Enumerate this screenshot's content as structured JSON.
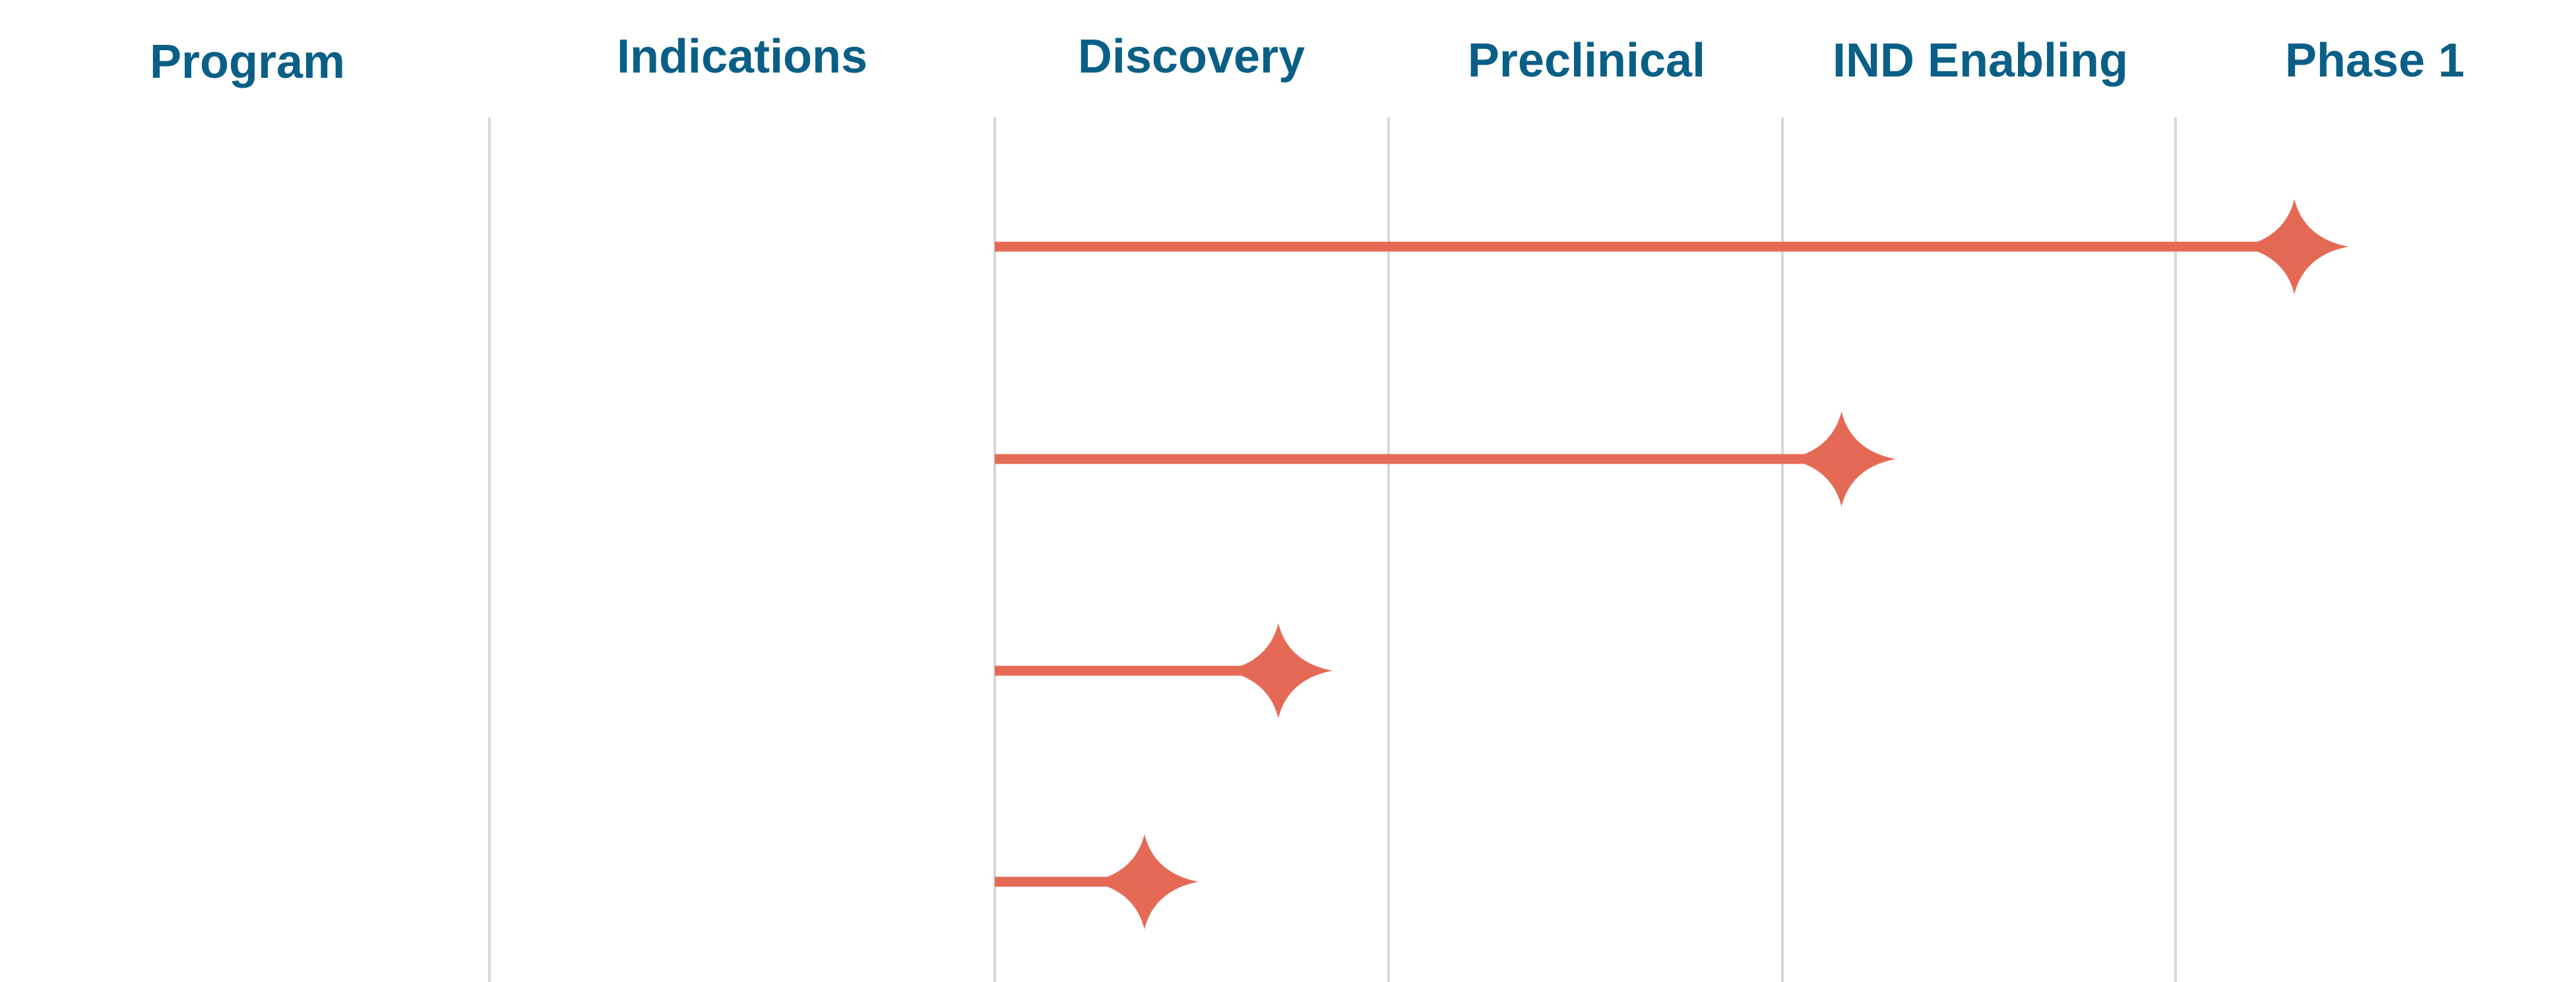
{
  "chart_data": {
    "type": "bar",
    "orientation": "horizontal",
    "columns": [
      "Program",
      "Indications",
      "Discovery",
      "Preclinical",
      "IND Enabling",
      "Phase 1"
    ],
    "stages": [
      "Discovery",
      "Preclinical",
      "IND Enabling",
      "Phase 1"
    ],
    "xlim": [
      0,
      4
    ],
    "programs": [
      {
        "program": "",
        "indication": "",
        "progress": 3.3
      },
      {
        "program": "",
        "indication": "",
        "progress": 2.15
      },
      {
        "program": "",
        "indication": "",
        "progress": 0.72
      },
      {
        "program": "",
        "indication": "",
        "progress": 0.38
      }
    ],
    "grid": true,
    "legend": "none"
  },
  "colors": {
    "header_text": "#0a5f86",
    "bar": "#e56a55",
    "grid": "#d7d7d7"
  },
  "icons": {
    "bar_end": "four-point-star-icon"
  }
}
